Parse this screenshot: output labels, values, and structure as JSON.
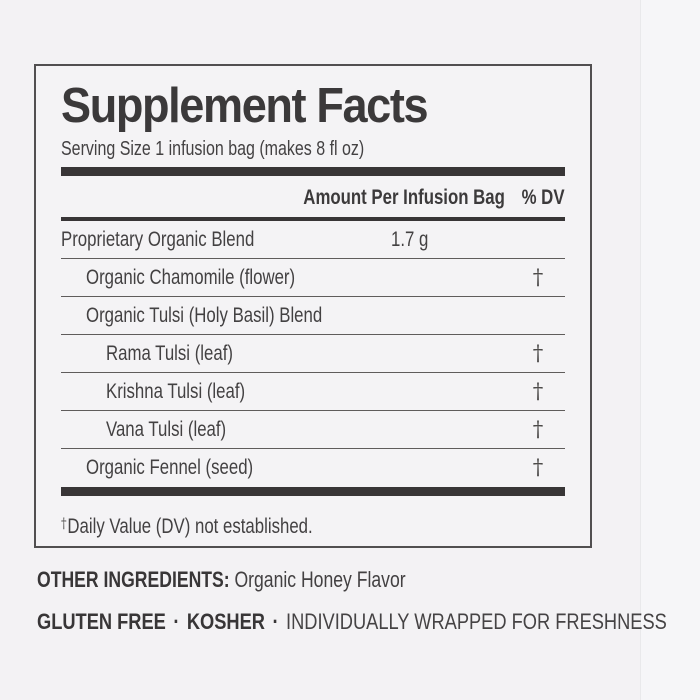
{
  "colors": {
    "background": "#f3f2f4",
    "panel_border": "#514f50",
    "rule_thick": "#383536",
    "rule_thin": "#5f5c5b",
    "text": "#403e3f"
  },
  "panel": {
    "title": "Supplement Facts",
    "serving_size": "Serving Size 1 infusion bag (makes 8 fl oz)",
    "amount_header": "Amount Per Infusion Bag",
    "dv_header": "% DV",
    "rows": [
      {
        "name": "Proprietary Organic Blend",
        "amount": "1.7 g",
        "dv": "",
        "indent": 0
      },
      {
        "name": "Organic Chamomile (flower)",
        "amount": "",
        "dv": "†",
        "indent": 1
      },
      {
        "name": "Organic Tulsi (Holy Basil) Blend",
        "amount": "",
        "dv": "",
        "indent": 1
      },
      {
        "name": "Rama Tulsi (leaf)",
        "amount": "",
        "dv": "†",
        "indent": 2
      },
      {
        "name": "Krishna Tulsi (leaf)",
        "amount": "",
        "dv": "†",
        "indent": 2
      },
      {
        "name": "Vana Tulsi (leaf)",
        "amount": "",
        "dv": "†",
        "indent": 2
      },
      {
        "name": "Organic Fennel (seed)",
        "amount": "",
        "dv": "†",
        "indent": 1
      }
    ],
    "footnote_symbol": "†",
    "footnote_text": "Daily Value (DV) not established."
  },
  "other_ingredients": {
    "label": "OTHER INGREDIENTS:",
    "value": "Organic Honey Flavor"
  },
  "claims": {
    "separator": "·",
    "items": [
      {
        "text": "GLUTEN FREE",
        "bold": true
      },
      {
        "text": "KOSHER",
        "bold": true
      },
      {
        "text": "INDIVIDUALLY WRAPPED FOR FRESHNESS",
        "bold": false
      }
    ]
  }
}
